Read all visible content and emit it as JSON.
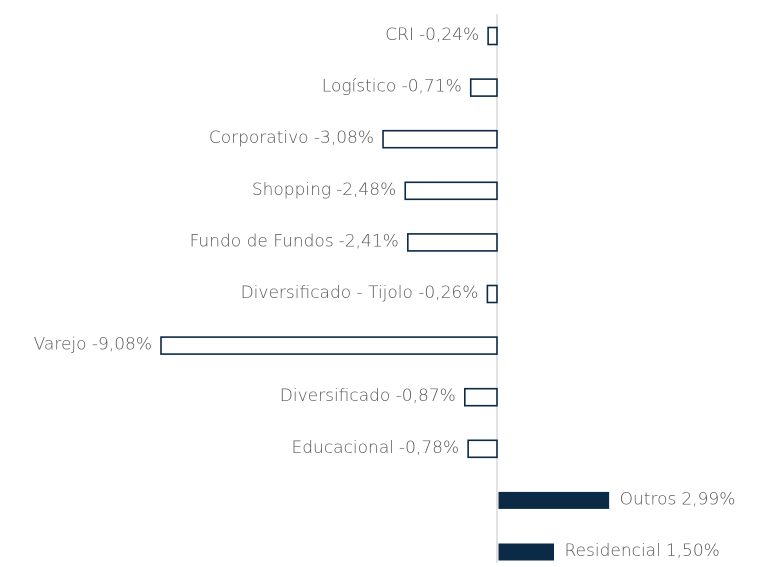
{
  "chart_data": {
    "type": "hbar",
    "categories": [
      "CRI",
      "Logístico",
      "Corporativo",
      "Shopping",
      "Fundo de Fundos",
      "Diversificado - Tijolo",
      "Varejo",
      "Diversificado",
      "Educacional",
      "Outros",
      "Residencial"
    ],
    "values": [
      -0.24,
      -0.71,
      -3.08,
      -2.48,
      -2.41,
      -0.26,
      -9.08,
      -0.87,
      -0.78,
      2.99,
      1.5
    ],
    "value_labels": [
      "-0,24%",
      "-0,71%",
      "-3,08%",
      "-2,48%",
      "-2,41%",
      "-0,26%",
      "-9,08%",
      "-0,87%",
      "-0,78%",
      "2,99%",
      "1,50%"
    ],
    "color": "#0b2a45"
  }
}
